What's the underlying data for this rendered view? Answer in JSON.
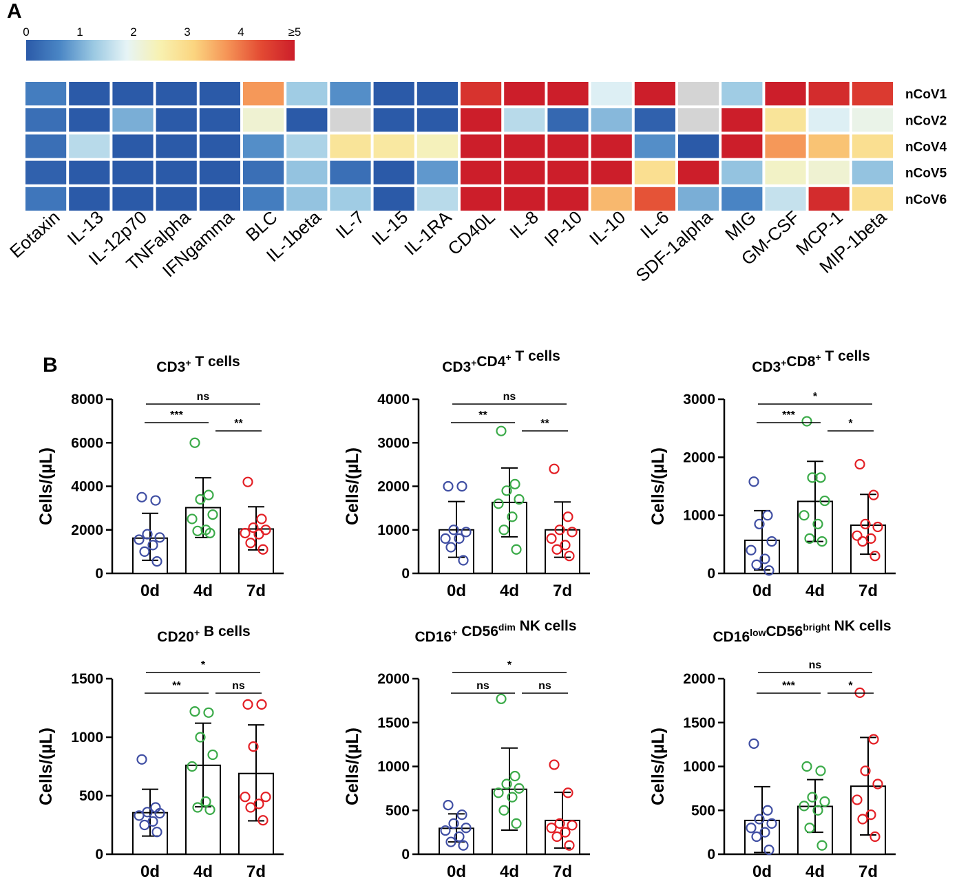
{
  "panel_a": {
    "label": "A",
    "colorbar": {
      "tick_labels": [
        "0",
        "1",
        "2",
        "3",
        "4",
        "≥5"
      ],
      "stops": [
        "#2b5aa8",
        "#4a86c5",
        "#9ac8e2",
        "#e6f4f6",
        "#f8f1b0",
        "#fbd580",
        "#f59356",
        "#e34a33",
        "#cc1e2a"
      ]
    },
    "heatmap": {
      "rows": [
        "nCoV1",
        "nCoV2",
        "nCoV4",
        "nCoV5",
        "nCoV6"
      ],
      "columns": [
        "Eotaxin",
        "IL-13",
        "IL-12p70",
        "TNFalpha",
        "IFNgamma",
        "BLC",
        "IL-1beta",
        "IL-7",
        "IL-15",
        "IL-1RA",
        "CD40L",
        "IL-8",
        "IP-10",
        "IL-10",
        "IL-6",
        "SDF-1alpha",
        "MIG",
        "GM-CSF",
        "MCP-1",
        "MIP-1beta"
      ],
      "missing_color": "#d4d4d4",
      "values": [
        [
          0.5,
          0,
          0,
          0,
          0,
          3.7,
          1.3,
          0.7,
          0,
          0,
          4.7,
          5,
          5,
          1.8,
          5,
          null,
          1.3,
          5,
          4.8,
          4.6
        ],
        [
          0.3,
          0,
          1.0,
          0,
          0,
          2.2,
          0,
          null,
          0,
          0,
          5,
          1.5,
          0.2,
          1.1,
          0.1,
          null,
          5,
          2.8,
          1.8,
          2.0
        ],
        [
          0.3,
          1.5,
          0,
          0,
          0,
          0.7,
          1.4,
          2.8,
          2.7,
          2.4,
          5,
          5,
          5,
          5,
          0.7,
          0,
          5,
          3.7,
          3.3,
          2.9
        ],
        [
          0.1,
          0,
          0,
          0,
          0,
          0.3,
          1.2,
          0.3,
          0,
          0.8,
          5,
          5,
          5,
          5,
          2.9,
          5,
          1.2,
          2.3,
          2.2,
          1.2
        ],
        [
          0.4,
          0,
          0,
          0,
          0,
          0.5,
          1.2,
          1.3,
          0,
          1.5,
          5,
          5,
          5,
          3.4,
          4.3,
          1.0,
          0.6,
          1.6,
          4.8,
          2.9
        ]
      ]
    }
  },
  "panel_b": {
    "label": "B",
    "y_axis_label": "Cells/(µL)",
    "charts": [
      {
        "title": [
          {
            "t": "CD3"
          },
          {
            "t": "+",
            "sup": true
          },
          {
            "t": " T cells"
          }
        ],
        "categories": [
          "0d",
          "4d",
          "7d"
        ],
        "ylim": [
          0,
          8000
        ],
        "yticks": [
          0,
          2000,
          4000,
          6000,
          8000
        ],
        "means": [
          1620,
          3020,
          2040
        ],
        "errors": [
          [
            600,
            2760
          ],
          [
            1650,
            4390
          ],
          [
            1080,
            3060
          ]
        ],
        "points": [
          [
            3500,
            3350,
            1800,
            1650,
            1550,
            1300,
            1000,
            550
          ],
          [
            6000,
            3600,
            3400,
            2700,
            2500,
            2000,
            1950,
            1850
          ],
          [
            4200,
            2500,
            2100,
            2000,
            1850,
            1800,
            1400,
            1100
          ]
        ],
        "comparisons": [
          {
            "pair": [
              0,
              2
            ],
            "label": "ns"
          },
          {
            "pair": [
              0,
              1
            ],
            "label": "***"
          },
          {
            "pair": [
              1,
              2
            ],
            "label": "**"
          }
        ]
      },
      {
        "title": [
          {
            "t": "CD3"
          },
          {
            "t": "+",
            "sup": true
          },
          {
            "t": "CD4"
          },
          {
            "t": "+",
            "sup": true
          },
          {
            "t": " T cells"
          }
        ],
        "categories": [
          "0d",
          "4d",
          "7d"
        ],
        "ylim": [
          0,
          4000
        ],
        "yticks": [
          0,
          1000,
          2000,
          3000,
          4000
        ],
        "means": [
          1000,
          1630,
          1000
        ],
        "errors": [
          [
            370,
            1650
          ],
          [
            840,
            2420
          ],
          [
            370,
            1640
          ]
        ],
        "points": [
          [
            2000,
            2000,
            1000,
            950,
            800,
            800,
            600,
            300
          ],
          [
            3270,
            2050,
            1900,
            1700,
            1600,
            1300,
            1000,
            550
          ],
          [
            2400,
            1300,
            1000,
            950,
            800,
            650,
            550,
            400
          ]
        ],
        "comparisons": [
          {
            "pair": [
              0,
              2
            ],
            "label": "ns"
          },
          {
            "pair": [
              0,
              1
            ],
            "label": "**"
          },
          {
            "pair": [
              1,
              2
            ],
            "label": "**"
          }
        ]
      },
      {
        "title": [
          {
            "t": "CD3"
          },
          {
            "t": "+",
            "sup": true
          },
          {
            "t": "CD8"
          },
          {
            "t": "+",
            "sup": true
          },
          {
            "t": " T cells"
          }
        ],
        "categories": [
          "0d",
          "4d",
          "7d"
        ],
        "ylim": [
          0,
          3000
        ],
        "yticks": [
          0,
          1000,
          2000,
          3000
        ],
        "means": [
          570,
          1240,
          830
        ],
        "errors": [
          [
            60,
            1080
          ],
          [
            550,
            1930
          ],
          [
            330,
            1360
          ]
        ],
        "points": [
          [
            1580,
            1000,
            850,
            550,
            400,
            250,
            150,
            50
          ],
          [
            2620,
            1650,
            1650,
            1250,
            1000,
            850,
            600,
            550
          ],
          [
            1880,
            1350,
            850,
            800,
            650,
            600,
            550,
            300
          ]
        ],
        "comparisons": [
          {
            "pair": [
              0,
              2
            ],
            "label": "*"
          },
          {
            "pair": [
              0,
              1
            ],
            "label": "***"
          },
          {
            "pair": [
              1,
              2
            ],
            "label": "*"
          }
        ]
      },
      {
        "title": [
          {
            "t": "CD20"
          },
          {
            "t": "+",
            "sup": true
          },
          {
            "t": " B cells"
          }
        ],
        "categories": [
          "0d",
          "4d",
          "7d"
        ],
        "ylim": [
          0,
          1500
        ],
        "yticks": [
          0,
          500,
          1000,
          1500
        ],
        "means": [
          355,
          760,
          690
        ],
        "errors": [
          [
            155,
            555
          ],
          [
            405,
            1120
          ],
          [
            285,
            1105
          ]
        ],
        "points": [
          [
            810,
            400,
            360,
            350,
            330,
            280,
            250,
            190
          ],
          [
            1220,
            1210,
            1000,
            850,
            750,
            450,
            400,
            380
          ],
          [
            1280,
            1280,
            920,
            490,
            490,
            430,
            400,
            290
          ]
        ],
        "comparisons": [
          {
            "pair": [
              0,
              2
            ],
            "label": "*"
          },
          {
            "pair": [
              0,
              1
            ],
            "label": "**"
          },
          {
            "pair": [
              1,
              2
            ],
            "label": "ns"
          }
        ]
      },
      {
        "title": [
          {
            "t": "CD16"
          },
          {
            "t": "+",
            "sup": true
          },
          {
            "t": " CD56"
          },
          {
            "t": "dim",
            "sup": true
          },
          {
            "t": " NK cells"
          }
        ],
        "categories": [
          "0d",
          "4d",
          "7d"
        ],
        "ylim": [
          0,
          2000
        ],
        "yticks": [
          0,
          500,
          1000,
          1500,
          2000
        ],
        "means": [
          295,
          740,
          385
        ],
        "errors": [
          [
            140,
            460
          ],
          [
            275,
            1210
          ],
          [
            70,
            705
          ]
        ],
        "points": [
          [
            560,
            450,
            350,
            300,
            270,
            200,
            140,
            100
          ],
          [
            1770,
            890,
            800,
            750,
            700,
            650,
            500,
            350
          ],
          [
            1020,
            700,
            350,
            330,
            300,
            250,
            200,
            100
          ]
        ],
        "comparisons": [
          {
            "pair": [
              0,
              2
            ],
            "label": "*"
          },
          {
            "pair": [
              0,
              1
            ],
            "label": "ns"
          },
          {
            "pair": [
              1,
              2
            ],
            "label": "ns"
          }
        ]
      },
      {
        "title": [
          {
            "t": "CD16"
          },
          {
            "t": "low",
            "sup": true
          },
          {
            "t": "CD56"
          },
          {
            "t": "bright",
            "sup": true
          },
          {
            "t": " NK cells"
          }
        ],
        "categories": [
          "0d",
          "4d",
          "7d"
        ],
        "ylim": [
          0,
          2000
        ],
        "yticks": [
          0,
          500,
          1000,
          1500,
          2000
        ],
        "means": [
          385,
          545,
          775
        ],
        "errors": [
          [
            20,
            770
          ],
          [
            250,
            850
          ],
          [
            220,
            1330
          ]
        ],
        "points": [
          [
            1260,
            500,
            400,
            350,
            300,
            250,
            200,
            50
          ],
          [
            1000,
            950,
            650,
            600,
            550,
            500,
            300,
            100
          ],
          [
            1840,
            1310,
            950,
            800,
            620,
            450,
            400,
            200
          ]
        ],
        "comparisons": [
          {
            "pair": [
              0,
              2
            ],
            "label": "ns"
          },
          {
            "pair": [
              0,
              1
            ],
            "label": "***"
          },
          {
            "pair": [
              1,
              2
            ],
            "label": "*"
          }
        ]
      }
    ],
    "group_colors": [
      "#3f4ea3",
      "#3aaa48",
      "#e31e24"
    ]
  }
}
